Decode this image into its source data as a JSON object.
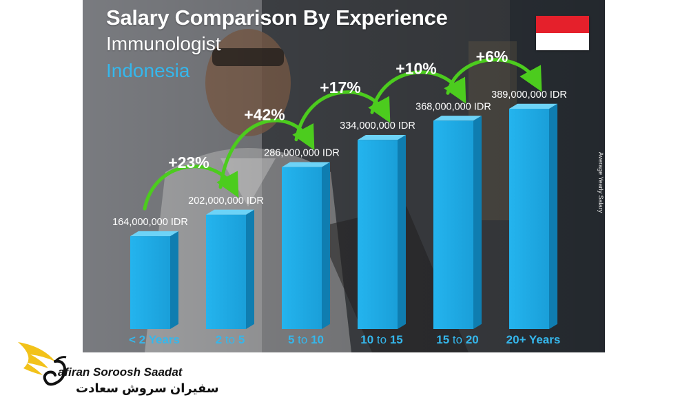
{
  "header": {
    "title": "Salary Comparison By Experience",
    "subtitle": "Immunologist",
    "country": "Indonesia"
  },
  "flag": {
    "top_color": "#e5202b",
    "bottom_color": "#ffffff"
  },
  "side_label": "Average Yearly Salary",
  "chart_data": {
    "type": "bar",
    "categories": [
      "< 2 Years",
      "2 to 5",
      "5 to 10",
      "10 to 15",
      "15 to 20",
      "20+ Years"
    ],
    "values": [
      164000000,
      202000000,
      286000000,
      334000000,
      368000000,
      389000000
    ],
    "value_labels": [
      "164,000,000 IDR",
      "202,000,000 IDR",
      "286,000,000 IDR",
      "334,000,000 IDR",
      "368,000,000 IDR",
      "389,000,000 IDR"
    ],
    "pct_changes": [
      "+23%",
      "+42%",
      "+17%",
      "+10%",
      "+6%"
    ],
    "title": "Salary Comparison By Experience",
    "ylabel": "Average Yearly Salary",
    "ylim": [
      0,
      389000000
    ],
    "bar_color": "#1fa8e4",
    "arrow_color": "#4ccc1e"
  },
  "logo": {
    "brand_en": "Safiran Soroosh Saadat",
    "brand_en_visible": "afiran Soroosh Saadat",
    "brand_fa": "سفیران سروش سعادت",
    "mark_color": "#f2c21a"
  }
}
